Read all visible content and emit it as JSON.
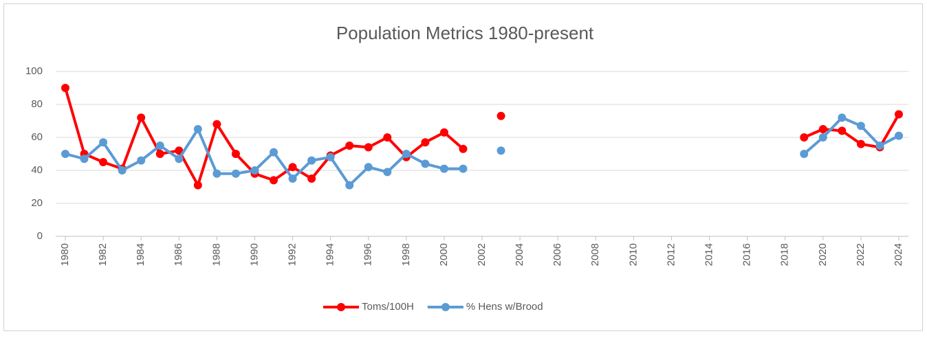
{
  "chart_data": {
    "type": "line",
    "title": "Population Metrics 1980-present",
    "x": [
      1980,
      1981,
      1982,
      1983,
      1984,
      1985,
      1986,
      1987,
      1988,
      1989,
      1990,
      1991,
      1992,
      1993,
      1994,
      1995,
      1996,
      1997,
      1998,
      1999,
      2000,
      2001,
      2002,
      2003,
      2004,
      2005,
      2006,
      2007,
      2008,
      2009,
      2010,
      2011,
      2012,
      2013,
      2014,
      2015,
      2016,
      2017,
      2018,
      2019,
      2020,
      2021,
      2022,
      2023,
      2024
    ],
    "series": [
      {
        "name": "Toms/100H",
        "color": "#ff0000",
        "values": [
          90,
          50,
          45,
          41,
          72,
          50,
          52,
          31,
          68,
          50,
          38,
          34,
          42,
          35,
          49,
          55,
          54,
          60,
          48,
          57,
          63,
          53,
          null,
          73,
          null,
          null,
          null,
          null,
          null,
          null,
          null,
          null,
          null,
          null,
          null,
          null,
          null,
          null,
          null,
          60,
          65,
          64,
          56,
          54,
          74
        ]
      },
      {
        "name": "% Hens w/Brood",
        "color": "#5b9bd5",
        "values": [
          50,
          47,
          57,
          40,
          46,
          55,
          47,
          65,
          38,
          38,
          40,
          51,
          35,
          46,
          48,
          31,
          42,
          39,
          50,
          44,
          41,
          41,
          null,
          52,
          null,
          null,
          null,
          null,
          null,
          null,
          null,
          null,
          null,
          null,
          null,
          null,
          null,
          null,
          null,
          50,
          60,
          72,
          67,
          55,
          61
        ]
      }
    ],
    "xlim": [
      1980,
      2024
    ],
    "xticks": [
      1980,
      1982,
      1984,
      1986,
      1988,
      1990,
      1992,
      1994,
      1996,
      1998,
      2000,
      2002,
      2004,
      2006,
      2008,
      2010,
      2012,
      2014,
      2016,
      2018,
      2020,
      2022,
      2024
    ],
    "ylim": [
      0,
      100
    ],
    "yticks": [
      0,
      20,
      40,
      60,
      80,
      100
    ],
    "grid": true,
    "legend": "bottom"
  }
}
